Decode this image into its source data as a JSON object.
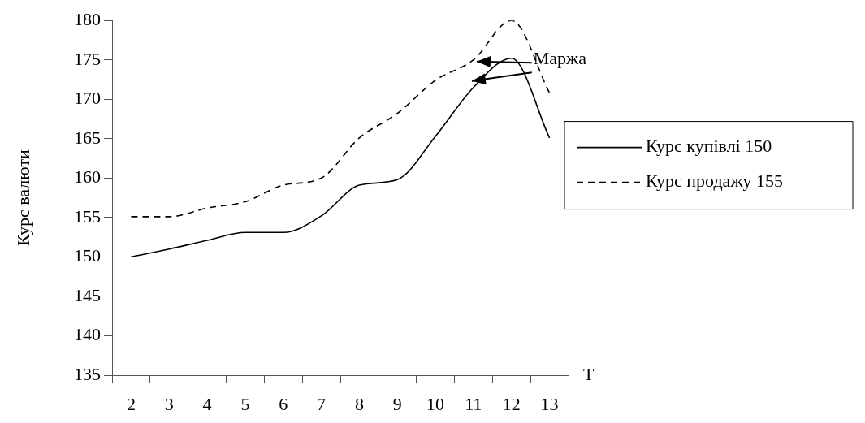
{
  "chart_data": {
    "type": "line",
    "categories": [
      "2",
      "3",
      "4",
      "5",
      "6",
      "7",
      "8",
      "9",
      "10",
      "11",
      "12",
      "13"
    ],
    "series": [
      {
        "name": "Курс купівлі 150",
        "color": "#000000",
        "line_style": "solid",
        "values": [
          150,
          151,
          152.1,
          153.1,
          153.1,
          155.2,
          159.1,
          159.8,
          165.3,
          171.5,
          175.2,
          165.1
        ]
      },
      {
        "name": "Курс продажу 155",
        "color": "#000000",
        "line_style": "dashed",
        "values": [
          155.1,
          155.1,
          156.2,
          157,
          159.1,
          160,
          165.1,
          168.2,
          172.4,
          175,
          180,
          170.8
        ]
      }
    ],
    "xlabel": "T",
    "ylabel": "Курс валюти",
    "ylim": [
      135,
      180
    ],
    "yticks": [
      135,
      140,
      145,
      150,
      155,
      160,
      165,
      170,
      175,
      180
    ],
    "annotations": [
      "Маржа"
    ],
    "legend": "right",
    "grid": false,
    "marker": "none"
  }
}
